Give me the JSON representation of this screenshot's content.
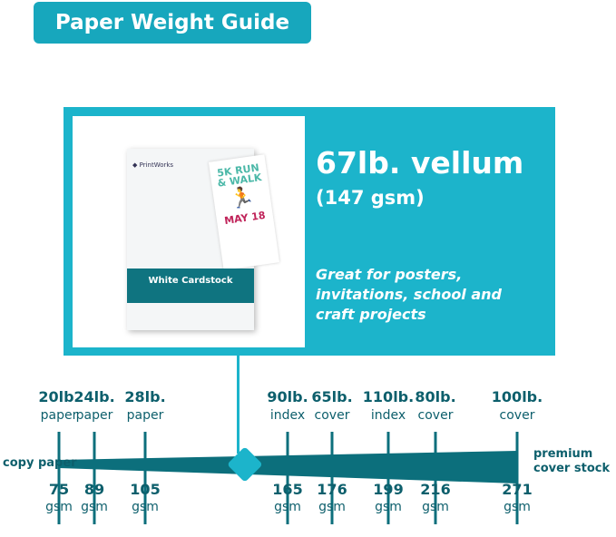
{
  "title": "Paper Weight Guide",
  "featured": {
    "weight": "67lb. vellum",
    "gsm": "(147 gsm)",
    "description": "Great for posters, invitations, school and craft projects",
    "gsm_value": 147,
    "product": {
      "brand": "PrintWorks",
      "poster_title": "5K RUN & WALK",
      "poster_date": "MAY 18",
      "label": "White Cardstock"
    }
  },
  "scale": {
    "left_label": "copy paper",
    "right_label": "premium cover stock",
    "ticks": [
      {
        "weight": "20lb.",
        "kind": "paper",
        "gsm": 75
      },
      {
        "weight": "24lb.",
        "kind": "paper",
        "gsm": 89
      },
      {
        "weight": "28lb.",
        "kind": "paper",
        "gsm": 105
      },
      {
        "weight": "90lb.",
        "kind": "index",
        "gsm": 165
      },
      {
        "weight": "65lb.",
        "kind": "cover",
        "gsm": 176
      },
      {
        "weight": "110lb.",
        "kind": "index",
        "gsm": 199
      },
      {
        "weight": "80lb.",
        "kind": "cover",
        "gsm": 216
      },
      {
        "weight": "100lb.",
        "kind": "cover",
        "gsm": 271
      }
    ],
    "unit": "gsm"
  },
  "colors": {
    "accent": "#1cb4cb",
    "title_bg": "#17a7bd",
    "bar": "#0c6f7c",
    "text": "#0d5f6c"
  }
}
